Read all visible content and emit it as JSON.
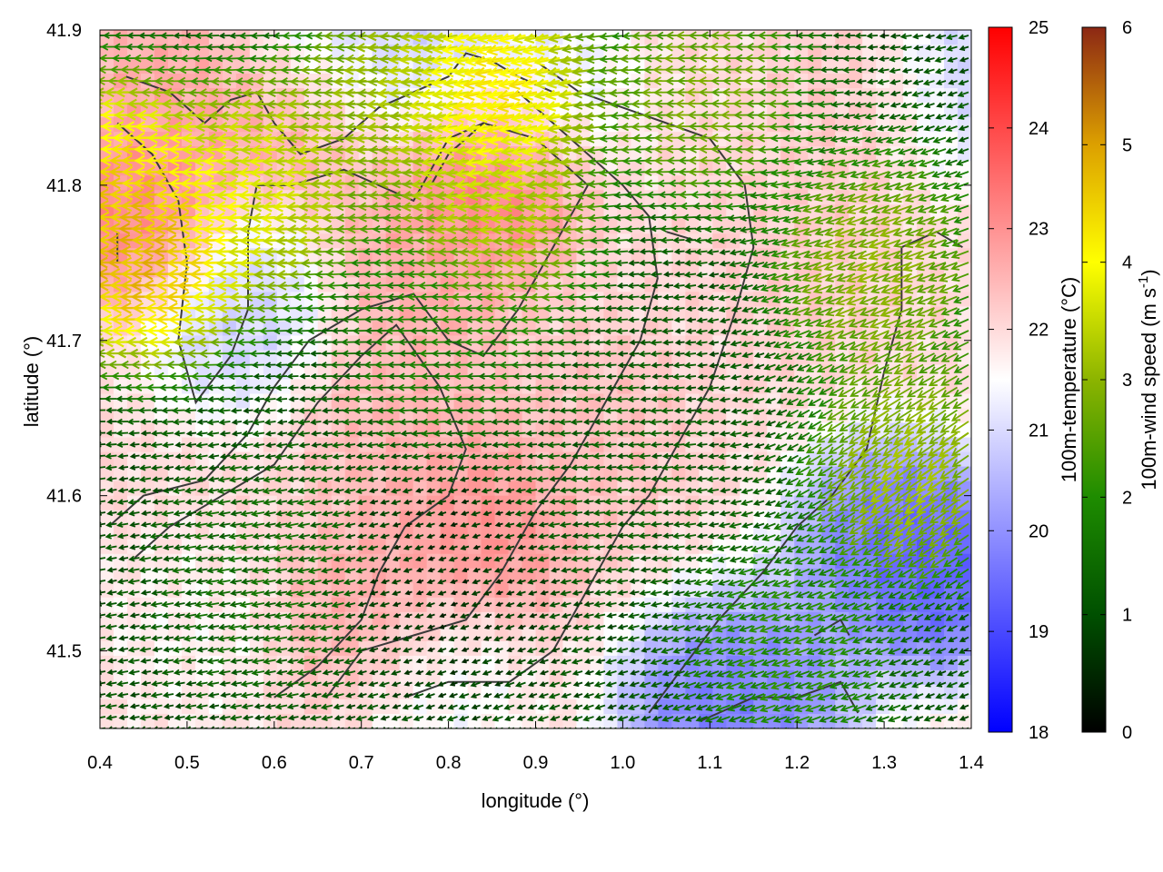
{
  "chart_data": {
    "type": "heatmap",
    "title": "",
    "xlabel": "longitude (°)",
    "ylabel": "latitude (°)",
    "xlim": [
      0.4,
      1.4
    ],
    "ylim": [
      41.45,
      41.9
    ],
    "xticks": [
      "0.4",
      "0.5",
      "0.6",
      "0.7",
      "0.8",
      "0.9",
      "1.0",
      "1.1",
      "1.2",
      "1.3",
      "1.4"
    ],
    "yticks": [
      "41.5",
      "41.6",
      "41.7",
      "41.8",
      "41.9"
    ],
    "grid": false,
    "colorbars": [
      {
        "label": "100m-temperature (°C)",
        "range": [
          18,
          25
        ],
        "ticks": [
          "18",
          "19",
          "20",
          "21",
          "22",
          "23",
          "24",
          "25"
        ],
        "colors": [
          "#0000ff",
          "#ffffff",
          "#ff0000"
        ]
      },
      {
        "label": "100m-wind speed (m s-1)",
        "label_main": "100m-wind speed (m s",
        "label_sup": "-1",
        "label_end": ")",
        "range": [
          0,
          6
        ],
        "ticks": [
          "0",
          "1",
          "2",
          "3",
          "4",
          "5",
          "6"
        ],
        "colors": [
          "#000000",
          "#005000",
          "#1e8c00",
          "#8cb400",
          "#ffff00",
          "#dca000",
          "#8c2814"
        ]
      }
    ],
    "temperature_regions": [
      {
        "lon": 0.45,
        "lat": 41.78,
        "temp": 23.4
      },
      {
        "lon": 0.48,
        "lat": 41.86,
        "temp": 22.8
      },
      {
        "lon": 0.63,
        "lat": 41.86,
        "temp": 23.2
      },
      {
        "lon": 0.85,
        "lat": 41.82,
        "temp": 24.0
      },
      {
        "lon": 0.78,
        "lat": 41.75,
        "temp": 22.8
      },
      {
        "lon": 0.75,
        "lat": 41.64,
        "temp": 22.6
      },
      {
        "lon": 0.84,
        "lat": 41.58,
        "temp": 23.2
      },
      {
        "lon": 0.72,
        "lat": 41.52,
        "temp": 22.9
      },
      {
        "lon": 0.97,
        "lat": 41.64,
        "temp": 22.4
      },
      {
        "lon": 1.3,
        "lat": 41.86,
        "temp": 22.4
      },
      {
        "lon": 1.2,
        "lat": 41.75,
        "temp": 22.2
      },
      {
        "lon": 0.55,
        "lat": 41.72,
        "temp": 20.6
      },
      {
        "lon": 0.66,
        "lat": 41.89,
        "temp": 20.2
      },
      {
        "lon": 0.8,
        "lat": 41.88,
        "temp": 20.6
      },
      {
        "lon": 0.9,
        "lat": 41.86,
        "temp": 20.9
      },
      {
        "lon": 1.38,
        "lat": 41.87,
        "temp": 20.4
      },
      {
        "lon": 1.3,
        "lat": 41.57,
        "temp": 19.2
      },
      {
        "lon": 1.37,
        "lat": 41.55,
        "temp": 18.8
      },
      {
        "lon": 1.18,
        "lat": 41.48,
        "temp": 19.6
      },
      {
        "lon": 1.1,
        "lat": 41.46,
        "temp": 19.3
      },
      {
        "lon": 0.78,
        "lat": 41.48,
        "temp": 21.2
      },
      {
        "lon": 0.5,
        "lat": 41.51,
        "temp": 21.6
      }
    ],
    "wind_regions": [
      {
        "lon": 0.47,
        "lat": 41.76,
        "speed": 5.4,
        "dir": 180
      },
      {
        "lon": 0.43,
        "lat": 41.8,
        "speed": 4.6,
        "dir": 180
      },
      {
        "lon": 0.6,
        "lat": 41.8,
        "speed": 4.0,
        "dir": 185
      },
      {
        "lon": 0.86,
        "lat": 41.86,
        "speed": 4.8,
        "dir": 195
      },
      {
        "lon": 0.86,
        "lat": 41.78,
        "speed": 3.6,
        "dir": 185
      },
      {
        "lon": 0.75,
        "lat": 41.86,
        "speed": 3.3,
        "dir": 180
      },
      {
        "lon": 1.1,
        "lat": 41.86,
        "speed": 3.0,
        "dir": 180
      },
      {
        "lon": 1.3,
        "lat": 41.75,
        "speed": 3.2,
        "dir": 200
      },
      {
        "lon": 1.34,
        "lat": 41.62,
        "speed": 3.4,
        "dir": 215
      },
      {
        "lon": 1.2,
        "lat": 41.5,
        "speed": 2.2,
        "dir": 200
      },
      {
        "lon": 0.8,
        "lat": 41.7,
        "speed": 1.8,
        "dir": 180
      },
      {
        "lon": 0.8,
        "lat": 41.55,
        "speed": 0.5,
        "dir": 200
      },
      {
        "lon": 0.6,
        "lat": 41.55,
        "speed": 1.5,
        "dir": 190
      },
      {
        "lon": 1.0,
        "lat": 41.62,
        "speed": 1.2,
        "dir": 185
      }
    ],
    "contours": [
      [
        [
          0.43,
          41.87
        ],
        [
          0.48,
          41.86
        ],
        [
          0.52,
          41.84
        ],
        [
          0.55,
          41.855
        ],
        [
          0.58,
          41.86
        ],
        [
          0.6,
          41.84
        ],
        [
          0.63,
          41.82
        ],
        [
          0.68,
          41.83
        ],
        [
          0.72,
          41.85
        ],
        [
          0.76,
          41.86
        ],
        [
          0.8,
          41.87
        ],
        [
          0.82,
          41.885
        ],
        [
          0.85,
          41.88
        ],
        [
          0.88,
          41.87
        ],
        [
          0.92,
          41.86
        ]
      ],
      [
        [
          0.42,
          41.84
        ],
        [
          0.46,
          41.82
        ],
        [
          0.49,
          41.79
        ],
        [
          0.5,
          41.75
        ],
        [
          0.49,
          41.7
        ],
        [
          0.51,
          41.66
        ],
        [
          0.55,
          41.69
        ],
        [
          0.57,
          41.72
        ],
        [
          0.57,
          41.77
        ],
        [
          0.58,
          41.8
        ],
        [
          0.62,
          41.8
        ],
        [
          0.68,
          41.81
        ],
        [
          0.72,
          41.8
        ],
        [
          0.76,
          41.79
        ],
        [
          0.8,
          41.83
        ],
        [
          0.84,
          41.84
        ]
      ],
      [
        [
          0.41,
          41.58
        ],
        [
          0.45,
          41.6
        ],
        [
          0.52,
          41.61
        ],
        [
          0.57,
          41.64
        ],
        [
          0.6,
          41.67
        ],
        [
          0.64,
          41.7
        ],
        [
          0.7,
          41.72
        ],
        [
          0.76,
          41.73
        ],
        [
          0.8,
          41.7
        ],
        [
          0.84,
          41.69
        ],
        [
          0.88,
          41.72
        ],
        [
          0.92,
          41.76
        ],
        [
          0.96,
          41.8
        ],
        [
          0.9,
          41.83
        ],
        [
          0.84,
          41.84
        ],
        [
          0.8,
          41.82
        ],
        [
          0.78,
          41.8
        ]
      ],
      [
        [
          0.44,
          41.56
        ],
        [
          0.48,
          41.58
        ],
        [
          0.54,
          41.6
        ],
        [
          0.6,
          41.62
        ],
        [
          0.65,
          41.66
        ],
        [
          0.7,
          41.69
        ],
        [
          0.74,
          41.71
        ],
        [
          0.79,
          41.67
        ],
        [
          0.82,
          41.63
        ],
        [
          0.8,
          41.6
        ],
        [
          0.75,
          41.58
        ],
        [
          0.72,
          41.55
        ],
        [
          0.7,
          41.52
        ],
        [
          0.65,
          41.49
        ],
        [
          0.6,
          41.47
        ]
      ],
      [
        [
          0.66,
          41.47
        ],
        [
          0.7,
          41.5
        ],
        [
          0.76,
          41.51
        ],
        [
          0.82,
          41.52
        ],
        [
          0.86,
          41.55
        ],
        [
          0.9,
          41.59
        ],
        [
          0.94,
          41.62
        ],
        [
          0.98,
          41.66
        ],
        [
          1.02,
          41.7
        ],
        [
          1.04,
          41.74
        ],
        [
          1.03,
          41.78
        ],
        [
          1.0,
          41.8
        ],
        [
          0.96,
          41.82
        ],
        [
          0.92,
          41.84
        ],
        [
          0.88,
          41.86
        ]
      ],
      [
        [
          0.75,
          41.47
        ],
        [
          0.8,
          41.48
        ],
        [
          0.87,
          41.48
        ],
        [
          0.92,
          41.5
        ],
        [
          0.96,
          41.54
        ],
        [
          1.0,
          41.58
        ],
        [
          1.03,
          41.6
        ],
        [
          1.06,
          41.63
        ],
        [
          1.1,
          41.67
        ],
        [
          1.13,
          41.72
        ],
        [
          1.15,
          41.76
        ],
        [
          1.14,
          41.8
        ],
        [
          1.1,
          41.83
        ],
        [
          1.05,
          41.84
        ],
        [
          1.0,
          41.85
        ],
        [
          0.95,
          41.86
        ],
        [
          0.9,
          41.88
        ]
      ],
      [
        [
          1.03,
          41.46
        ],
        [
          1.07,
          41.49
        ],
        [
          1.11,
          41.52
        ],
        [
          1.16,
          41.55
        ],
        [
          1.2,
          41.58
        ],
        [
          1.24,
          41.6
        ],
        [
          1.28,
          41.63
        ],
        [
          1.3,
          41.68
        ],
        [
          1.32,
          41.72
        ],
        [
          1.32,
          41.76
        ],
        [
          1.36,
          41.77
        ],
        [
          1.39,
          41.76
        ]
      ],
      [
        [
          1.09,
          41.455
        ],
        [
          1.15,
          41.47
        ],
        [
          1.2,
          41.47
        ],
        [
          1.25,
          41.48
        ],
        [
          1.27,
          41.46
        ]
      ],
      [
        [
          0.42,
          41.75
        ],
        [
          0.42,
          41.77
        ]
      ],
      [
        [
          1.05,
          41.77
        ],
        [
          1.08,
          41.765
        ]
      ],
      [
        [
          1.22,
          41.51
        ],
        [
          1.25,
          41.52
        ],
        [
          1.26,
          41.51
        ]
      ]
    ]
  }
}
